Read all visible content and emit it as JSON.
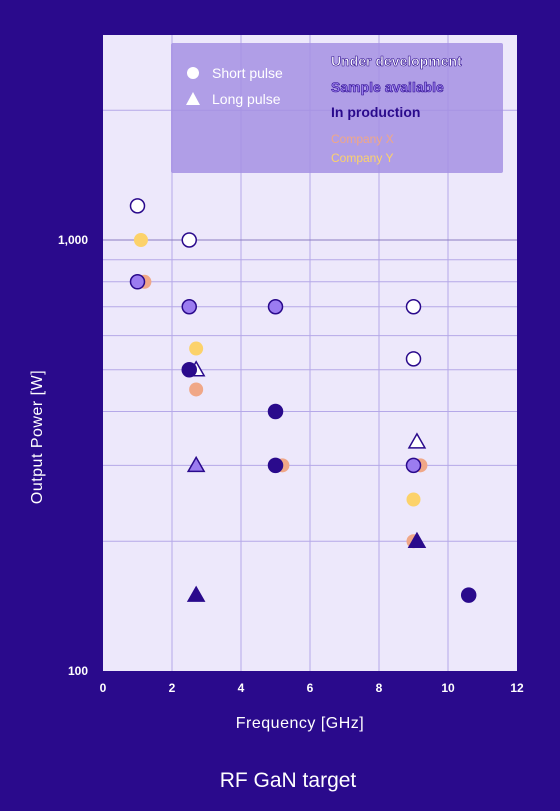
{
  "chart_data": {
    "type": "scatter",
    "title": "RF GaN target",
    "xlabel": "Frequency  [GHz]",
    "ylabel": "Output Power  [W]",
    "xlim": [
      0,
      12
    ],
    "ylim": [
      100,
      2500
    ],
    "yscale": "log",
    "x_ticks": [
      "0",
      "2",
      "4",
      "6",
      "8",
      "10",
      "12"
    ],
    "y_ticks": [
      {
        "value": 100,
        "label": "100"
      },
      {
        "value": 1000,
        "label": "1,000"
      }
    ],
    "grid": true,
    "legend_position": "top-right",
    "legend": {
      "shapes": [
        {
          "marker": "circle",
          "label": "Short pulse"
        },
        {
          "marker": "triangle",
          "label": "Long pulse"
        }
      ],
      "statuses": [
        {
          "key": "development",
          "label": "Under development"
        },
        {
          "key": "sample",
          "label": "Sample available"
        },
        {
          "key": "production",
          "label": "In production"
        }
      ],
      "companies": [
        {
          "key": "company_x",
          "label": "Company X"
        },
        {
          "key": "company_y",
          "label": "Company Y"
        }
      ]
    },
    "colors": {
      "development": "#ffffff",
      "sample": "#9b7cf0",
      "production": "#2a0a8c",
      "company_x": "#f0a787",
      "company_y": "#fcd26a",
      "plot_bg": "#ede8fb",
      "legend_bg": "#a591e3",
      "outline": "#2a0a8c",
      "gridline": "#b5a8e8"
    },
    "series": [
      {
        "category": "company_x",
        "points": [
          {
            "x": 1.2,
            "y": 800,
            "marker": "circle"
          },
          {
            "x": 2.7,
            "y": 450,
            "marker": "circle"
          },
          {
            "x": 5.2,
            "y": 300,
            "marker": "circle"
          },
          {
            "x": 9.2,
            "y": 300,
            "marker": "circle"
          },
          {
            "x": 9.0,
            "y": 200,
            "marker": "circle"
          }
        ]
      },
      {
        "category": "company_y",
        "points": [
          {
            "x": 1.1,
            "y": 1000,
            "marker": "circle"
          },
          {
            "x": 2.7,
            "y": 560,
            "marker": "circle"
          },
          {
            "x": 9.0,
            "y": 250,
            "marker": "circle"
          }
        ]
      },
      {
        "category": "development",
        "points": [
          {
            "x": 1.0,
            "y": 1200,
            "marker": "circle"
          },
          {
            "x": 2.5,
            "y": 1000,
            "marker": "circle"
          },
          {
            "x": 9.0,
            "y": 700,
            "marker": "circle"
          },
          {
            "x": 9.0,
            "y": 530,
            "marker": "circle"
          },
          {
            "x": 2.7,
            "y": 500,
            "marker": "triangle"
          },
          {
            "x": 9.1,
            "y": 340,
            "marker": "triangle"
          }
        ]
      },
      {
        "category": "sample",
        "points": [
          {
            "x": 1.0,
            "y": 800,
            "marker": "circle"
          },
          {
            "x": 2.5,
            "y": 700,
            "marker": "circle"
          },
          {
            "x": 5.0,
            "y": 700,
            "marker": "circle"
          },
          {
            "x": 9.0,
            "y": 300,
            "marker": "circle"
          },
          {
            "x": 2.7,
            "y": 300,
            "marker": "triangle"
          }
        ]
      },
      {
        "category": "production",
        "points": [
          {
            "x": 2.5,
            "y": 500,
            "marker": "circle"
          },
          {
            "x": 5.0,
            "y": 400,
            "marker": "circle"
          },
          {
            "x": 5.0,
            "y": 300,
            "marker": "circle"
          },
          {
            "x": 10.6,
            "y": 150,
            "marker": "circle"
          },
          {
            "x": 9.1,
            "y": 200,
            "marker": "triangle"
          },
          {
            "x": 2.7,
            "y": 150,
            "marker": "triangle"
          }
        ]
      }
    ]
  }
}
